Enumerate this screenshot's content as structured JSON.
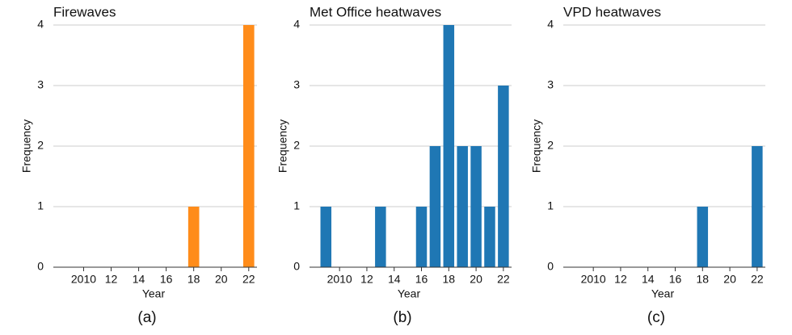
{
  "chart_data": [
    {
      "type": "bar",
      "title": "Firewaves",
      "caption": "(a)",
      "xlabel": "Year",
      "ylabel": "Frequency",
      "x": [
        2018,
        2022
      ],
      "values": [
        1,
        4
      ],
      "color": "#ff8c1a",
      "xlim": [
        2007.8,
        2022.6
      ],
      "xticks": [
        2010,
        {
          "value": 2012,
          "label": "12"
        },
        {
          "value": 2014,
          "label": "14"
        },
        {
          "value": 2016,
          "label": "16"
        },
        {
          "value": 2018,
          "label": "18"
        },
        {
          "value": 2020,
          "label": "20"
        },
        {
          "value": 2022,
          "label": "22"
        }
      ],
      "ylim": [
        0,
        4
      ],
      "yticks": [
        0,
        1,
        2,
        3,
        4
      ],
      "grid": true
    },
    {
      "type": "bar",
      "title": "Met Office heatwaves",
      "caption": "(b)",
      "xlabel": "Year",
      "ylabel": "Frequency",
      "x": [
        2009,
        2013,
        2016,
        2017,
        2018,
        2019,
        2020,
        2021,
        2022
      ],
      "values": [
        1,
        1,
        1,
        2,
        4,
        2,
        2,
        1,
        3
      ],
      "color": "#1f77b4",
      "xlim": [
        2007.8,
        2022.6
      ],
      "xticks": [
        2010,
        {
          "value": 2012,
          "label": "12"
        },
        {
          "value": 2014,
          "label": "14"
        },
        {
          "value": 2016,
          "label": "16"
        },
        {
          "value": 2018,
          "label": "18"
        },
        {
          "value": 2020,
          "label": "20"
        },
        {
          "value": 2022,
          "label": "22"
        }
      ],
      "ylim": [
        0,
        4
      ],
      "yticks": [
        0,
        1,
        2,
        3,
        4
      ],
      "grid": true
    },
    {
      "type": "bar",
      "title": "VPD heatwaves",
      "caption": "(c)",
      "xlabel": "Year",
      "ylabel": "Frequency",
      "x": [
        2018,
        2022
      ],
      "values": [
        1,
        2
      ],
      "color": "#1f77b4",
      "xlim": [
        2007.8,
        2022.6
      ],
      "xticks": [
        2010,
        {
          "value": 2012,
          "label": "12"
        },
        {
          "value": 2014,
          "label": "14"
        },
        {
          "value": 2016,
          "label": "16"
        },
        {
          "value": 2018,
          "label": "18"
        },
        {
          "value": 2020,
          "label": "20"
        },
        {
          "value": 2022,
          "label": "22"
        }
      ],
      "ylim": [
        0,
        4
      ],
      "yticks": [
        0,
        1,
        2,
        3,
        4
      ],
      "grid": true
    }
  ]
}
